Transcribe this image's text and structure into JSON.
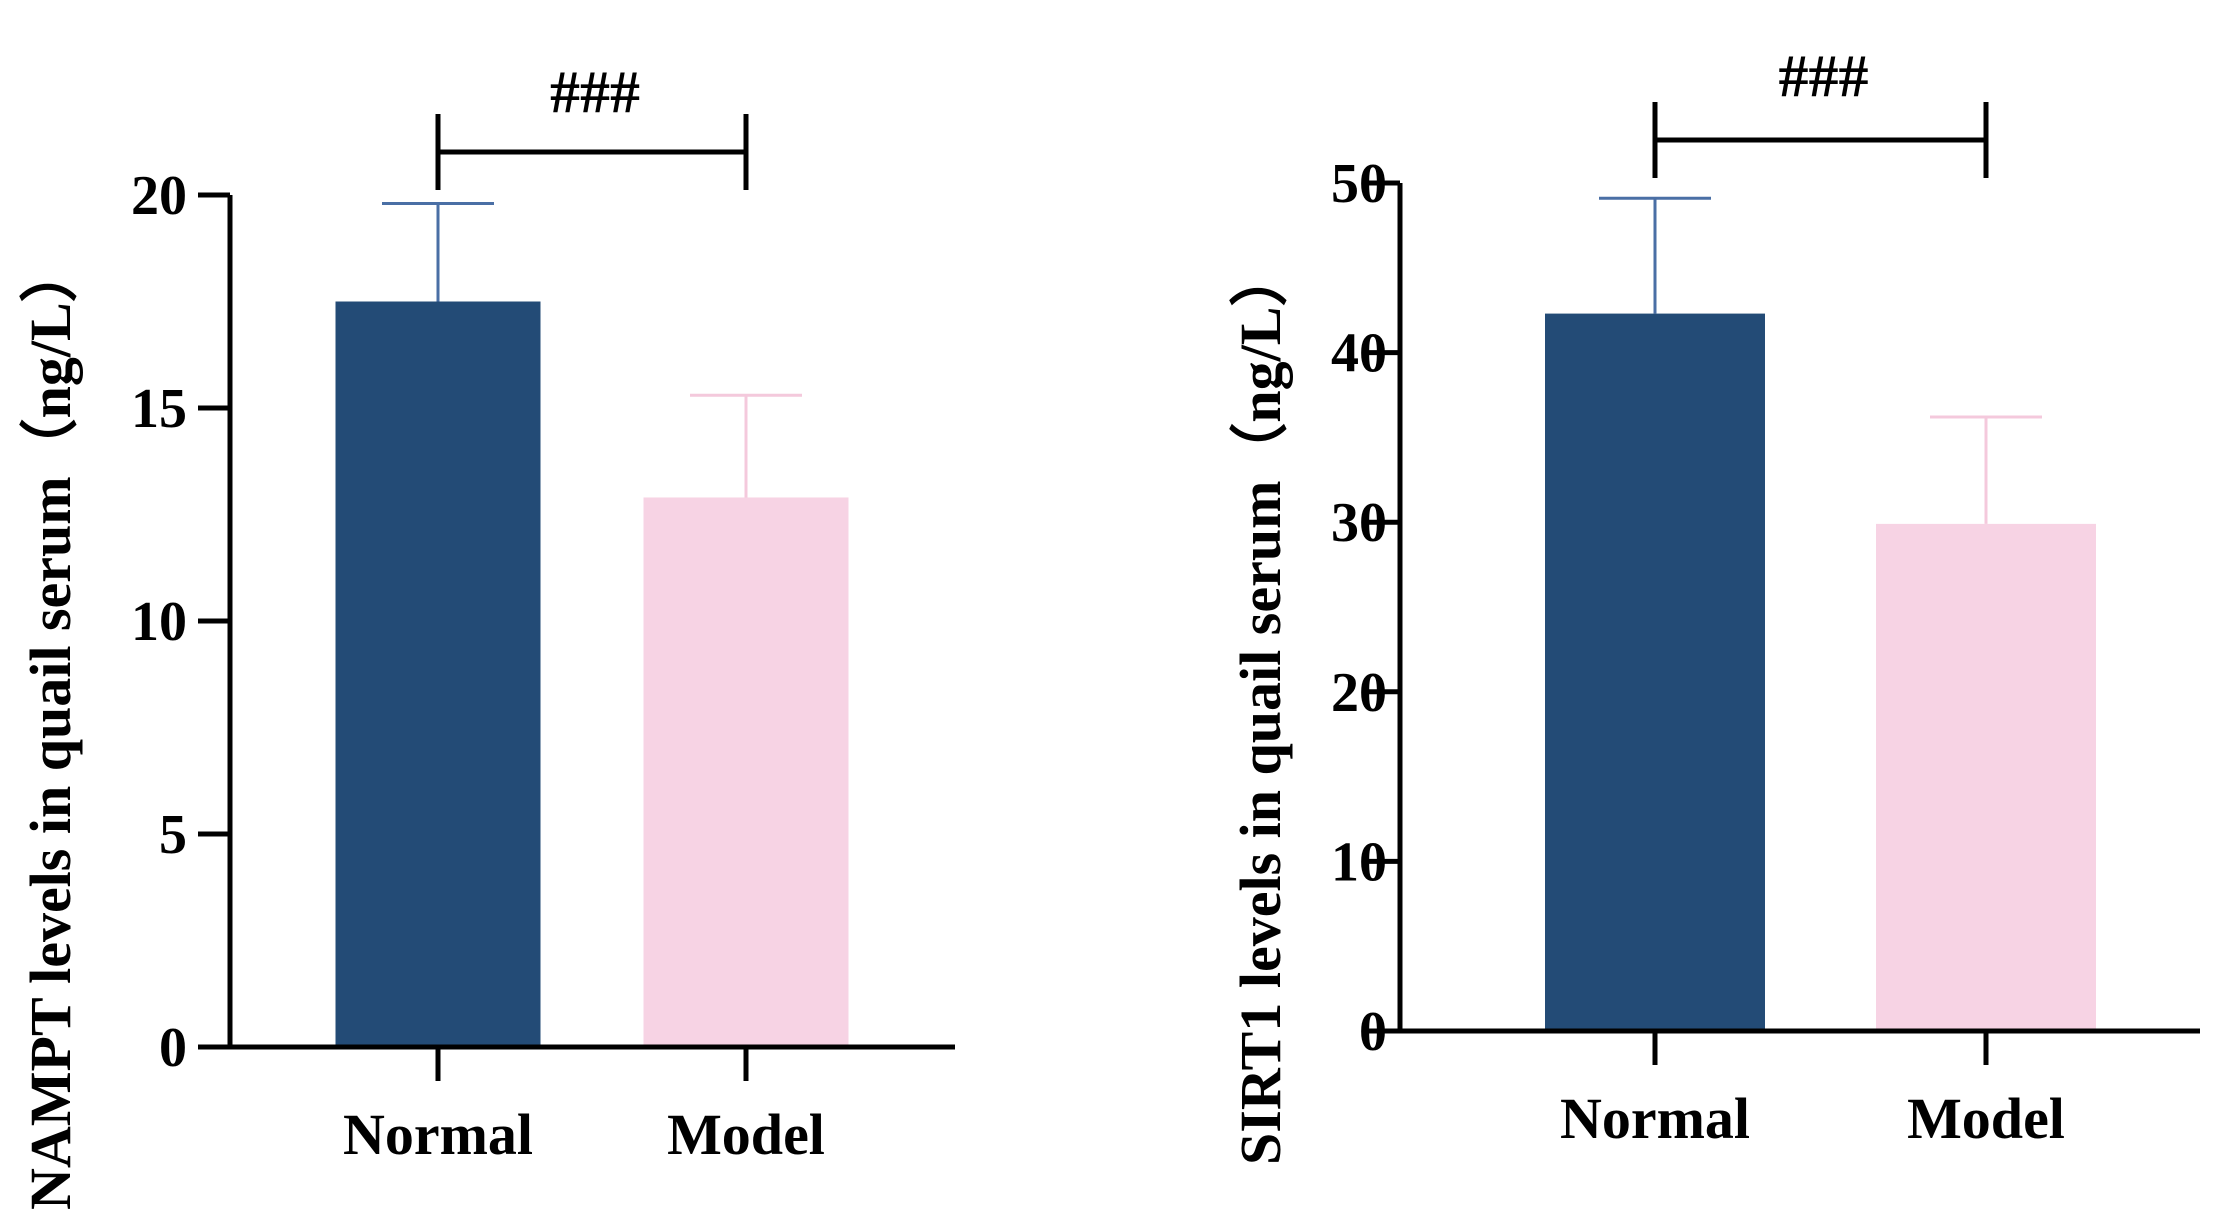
{
  "chart_data": [
    {
      "type": "bar",
      "categories": [
        "Normal",
        "Model"
      ],
      "values": [
        17.5,
        12.9
      ],
      "errors": [
        2.3,
        2.4
      ],
      "colors": [
        "#234b76",
        "#f7d3e4"
      ],
      "ylabel": "NAMPT levels in quail serum（ng/L）",
      "ylim": [
        0,
        20
      ],
      "yticks": [
        0,
        5,
        10,
        15,
        20
      ],
      "significance": {
        "label": "###",
        "between": [
          "Normal",
          "Model"
        ]
      },
      "grid": false
    },
    {
      "type": "bar",
      "categories": [
        "Normal",
        "Model"
      ],
      "values": [
        42.3,
        29.9
      ],
      "errors": [
        6.8,
        6.3
      ],
      "colors": [
        "#234b76",
        "#f7d3e4"
      ],
      "ylabel": "SIRT1 levels in quail serum（ng/L）",
      "ylim": [
        0,
        50
      ],
      "yticks": [
        0,
        10,
        20,
        30,
        40,
        50
      ],
      "significance": {
        "label": "###",
        "between": [
          "Normal",
          "Model"
        ]
      },
      "grid": false
    }
  ]
}
